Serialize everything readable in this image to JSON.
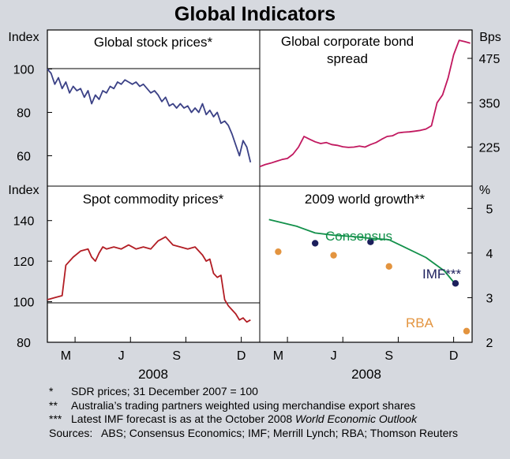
{
  "title": "Global Indicators",
  "chart_data": [
    {
      "type": "line",
      "title": "Global stock prices*",
      "ylabel": "Index",
      "yticks": [
        60,
        80,
        100
      ],
      "ylim": [
        46,
        118
      ],
      "xlim": [
        0,
        11.5
      ],
      "series": [
        {
          "name": "Global stock prices",
          "color": "#3b4186",
          "x": [
            0,
            0.2,
            0.4,
            0.6,
            0.8,
            1.0,
            1.2,
            1.4,
            1.6,
            1.8,
            2.0,
            2.2,
            2.4,
            2.6,
            2.8,
            3.0,
            3.2,
            3.4,
            3.6,
            3.8,
            4.0,
            4.2,
            4.4,
            4.6,
            4.8,
            5.0,
            5.2,
            5.4,
            5.6,
            5.8,
            6.0,
            6.2,
            6.4,
            6.6,
            6.8,
            7.0,
            7.2,
            7.4,
            7.6,
            7.8,
            8.0,
            8.2,
            8.4,
            8.6,
            8.8,
            9.0,
            9.2,
            9.4,
            9.6,
            9.8,
            10.0,
            10.2,
            10.4,
            10.6,
            10.8,
            11.0
          ],
          "values": [
            100,
            98,
            93,
            96,
            91,
            94,
            89,
            92,
            90,
            91,
            87,
            90,
            84,
            88,
            86,
            90,
            89,
            92,
            91,
            94,
            93,
            95,
            94,
            93,
            94,
            92,
            93,
            91,
            89,
            90,
            88,
            85,
            87,
            83,
            84,
            82,
            84,
            82,
            83,
            80,
            82,
            80,
            84,
            79,
            81,
            78,
            80,
            75,
            76,
            74,
            70,
            65,
            60,
            67,
            64,
            57
          ]
        }
      ]
    },
    {
      "type": "line",
      "title": "Global corporate bond spread",
      "ylabel": "Bps",
      "yticks": [
        225,
        350,
        475
      ],
      "ylim": [
        115,
        555
      ],
      "xlim": [
        0,
        11.5
      ],
      "series": [
        {
          "name": "Global corporate bond spread",
          "color": "#c1185f",
          "x": [
            0,
            0.3,
            0.6,
            0.9,
            1.2,
            1.5,
            1.8,
            2.1,
            2.4,
            2.7,
            3.0,
            3.3,
            3.6,
            3.9,
            4.2,
            4.5,
            4.8,
            5.1,
            5.4,
            5.7,
            6.0,
            6.3,
            6.6,
            6.9,
            7.2,
            7.5,
            7.8,
            8.1,
            8.4,
            8.7,
            9.0,
            9.3,
            9.6,
            9.9,
            10.2,
            10.5,
            10.8,
            11.1,
            11.4
          ],
          "values": [
            170,
            176,
            180,
            185,
            190,
            193,
            205,
            225,
            255,
            247,
            240,
            235,
            238,
            232,
            230,
            226,
            224,
            225,
            228,
            225,
            232,
            238,
            247,
            255,
            257,
            265,
            267,
            268,
            270,
            272,
            276,
            285,
            350,
            372,
            420,
            485,
            526,
            522,
            518
          ]
        }
      ]
    },
    {
      "type": "line",
      "title": "Spot commodity prices*",
      "ylabel": "Index",
      "yticks": [
        80,
        100,
        120,
        140
      ],
      "xticks": [
        "M",
        "J",
        "S",
        "D"
      ],
      "xlabel": "2008",
      "ylim": [
        80,
        157
      ],
      "xlim": [
        0,
        11.5
      ],
      "series": [
        {
          "name": "Spot commodity prices",
          "color": "#b21d24",
          "x": [
            0,
            0.4,
            0.8,
            1.0,
            1.4,
            1.8,
            2.2,
            2.4,
            2.6,
            2.8,
            3.0,
            3.2,
            3.6,
            4.0,
            4.4,
            4.8,
            5.2,
            5.6,
            6.0,
            6.2,
            6.4,
            6.8,
            7.2,
            7.6,
            8.0,
            8.4,
            8.6,
            8.8,
            9.0,
            9.2,
            9.4,
            9.6,
            9.8,
            10.0,
            10.2,
            10.4,
            10.6,
            10.8,
            11.0
          ],
          "values": [
            101,
            102,
            103,
            118,
            122,
            125,
            126,
            122,
            120,
            124,
            127,
            126,
            127,
            126,
            128,
            126,
            127,
            126,
            130,
            131,
            132,
            128,
            127,
            126,
            127,
            123,
            120,
            121,
            114,
            112,
            113,
            101,
            98,
            96,
            94,
            91,
            92,
            90,
            91
          ]
        }
      ]
    },
    {
      "type": "scatter",
      "title": "2009 world growth**",
      "ylabel": "%",
      "yticks": [
        2,
        3,
        4,
        5
      ],
      "xticks": [
        "M",
        "J",
        "S",
        "D"
      ],
      "xlabel": "2008",
      "ylim": [
        2,
        5.5
      ],
      "xlim": [
        0,
        11.5
      ],
      "series": [
        {
          "name": "Consensus",
          "type": "line",
          "color": "#12904a",
          "x": [
            0.5,
            2,
            3,
            4,
            5,
            6,
            7,
            8,
            9,
            10,
            10.6
          ],
          "values": [
            4.75,
            4.6,
            4.45,
            4.4,
            4.37,
            4.33,
            4.3,
            4.1,
            3.9,
            3.6,
            3.3
          ]
        },
        {
          "name": "IMF***",
          "type": "scatter",
          "color": "#1c1f5c",
          "x": [
            3,
            6,
            10.6
          ],
          "values": [
            4.22,
            4.25,
            3.32
          ]
        },
        {
          "name": "RBA",
          "type": "scatter",
          "color": "#e3943f",
          "x": [
            1,
            4,
            7,
            11.2
          ],
          "values": [
            4.03,
            3.95,
            3.7,
            2.25
          ]
        }
      ]
    }
  ],
  "notes": [
    {
      "mark": "*",
      "text": "SDR prices; 31 December 2007 = 100"
    },
    {
      "mark": "**",
      "text": "Australia’s trading partners weighted using merchandise export shares"
    },
    {
      "mark": "***",
      "text": "Latest IMF forecast is as at the October 2008 ",
      "text_italic": "World Economic Outlook"
    },
    {
      "mark": "Sources:",
      "text": "ABS; Consensus Economics; IMF; Merrill Lynch; RBA; Thomson Reuters"
    }
  ]
}
